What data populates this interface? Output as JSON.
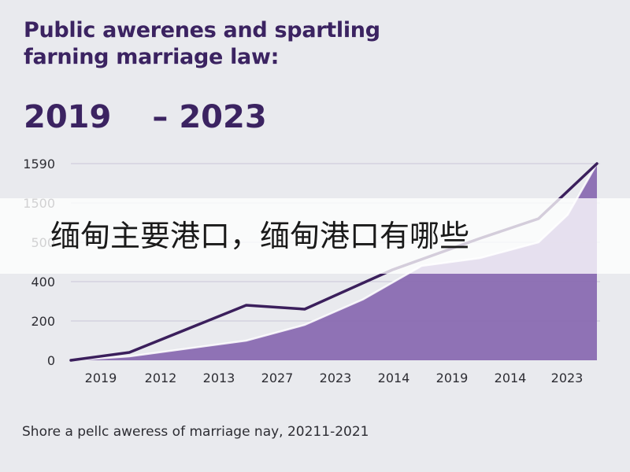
{
  "chart_data": {
    "type": "area",
    "title_lines": [
      "Public awerenes and spartling",
      "farning marriage law:"
    ],
    "range_start": "2019",
    "range_separator": "–",
    "range_end": "2023",
    "y_ticks": [
      "0",
      "200",
      "400",
      "500",
      "1500",
      "1590"
    ],
    "x_ticks": [
      "2019",
      "2012",
      "2013",
      "2027",
      "2023",
      "2014",
      "2019",
      "2014",
      "2023"
    ],
    "line_series": [
      {
        "x": 0,
        "y": 0
      },
      {
        "x": 1,
        "y": 40
      },
      {
        "x": 3,
        "y": 280
      },
      {
        "x": 4,
        "y": 260
      },
      {
        "x": 5.5,
        "y": 460
      },
      {
        "x": 7,
        "y": 620
      },
      {
        "x": 8,
        "y": 720
      },
      {
        "x": 9,
        "y": 1000
      }
    ],
    "area_series": [
      {
        "x": 0,
        "y": 0
      },
      {
        "x": 1,
        "y": 20
      },
      {
        "x": 3,
        "y": 100
      },
      {
        "x": 4,
        "y": 180
      },
      {
        "x": 5,
        "y": 310
      },
      {
        "x": 6,
        "y": 480
      },
      {
        "x": 7,
        "y": 520
      },
      {
        "x": 8,
        "y": 600
      },
      {
        "x": 8.5,
        "y": 740
      },
      {
        "x": 9,
        "y": 1000
      }
    ],
    "caption": "Shore a pellc aweress of marriage nay, 20211-2021",
    "grid": true,
    "line_color": "#3b1f5c",
    "area_color": "#8a6bb1",
    "area_edge_color": "#ffffff"
  },
  "overlay": {
    "text": "缅甸主要港口，缅甸港口有哪些"
  }
}
